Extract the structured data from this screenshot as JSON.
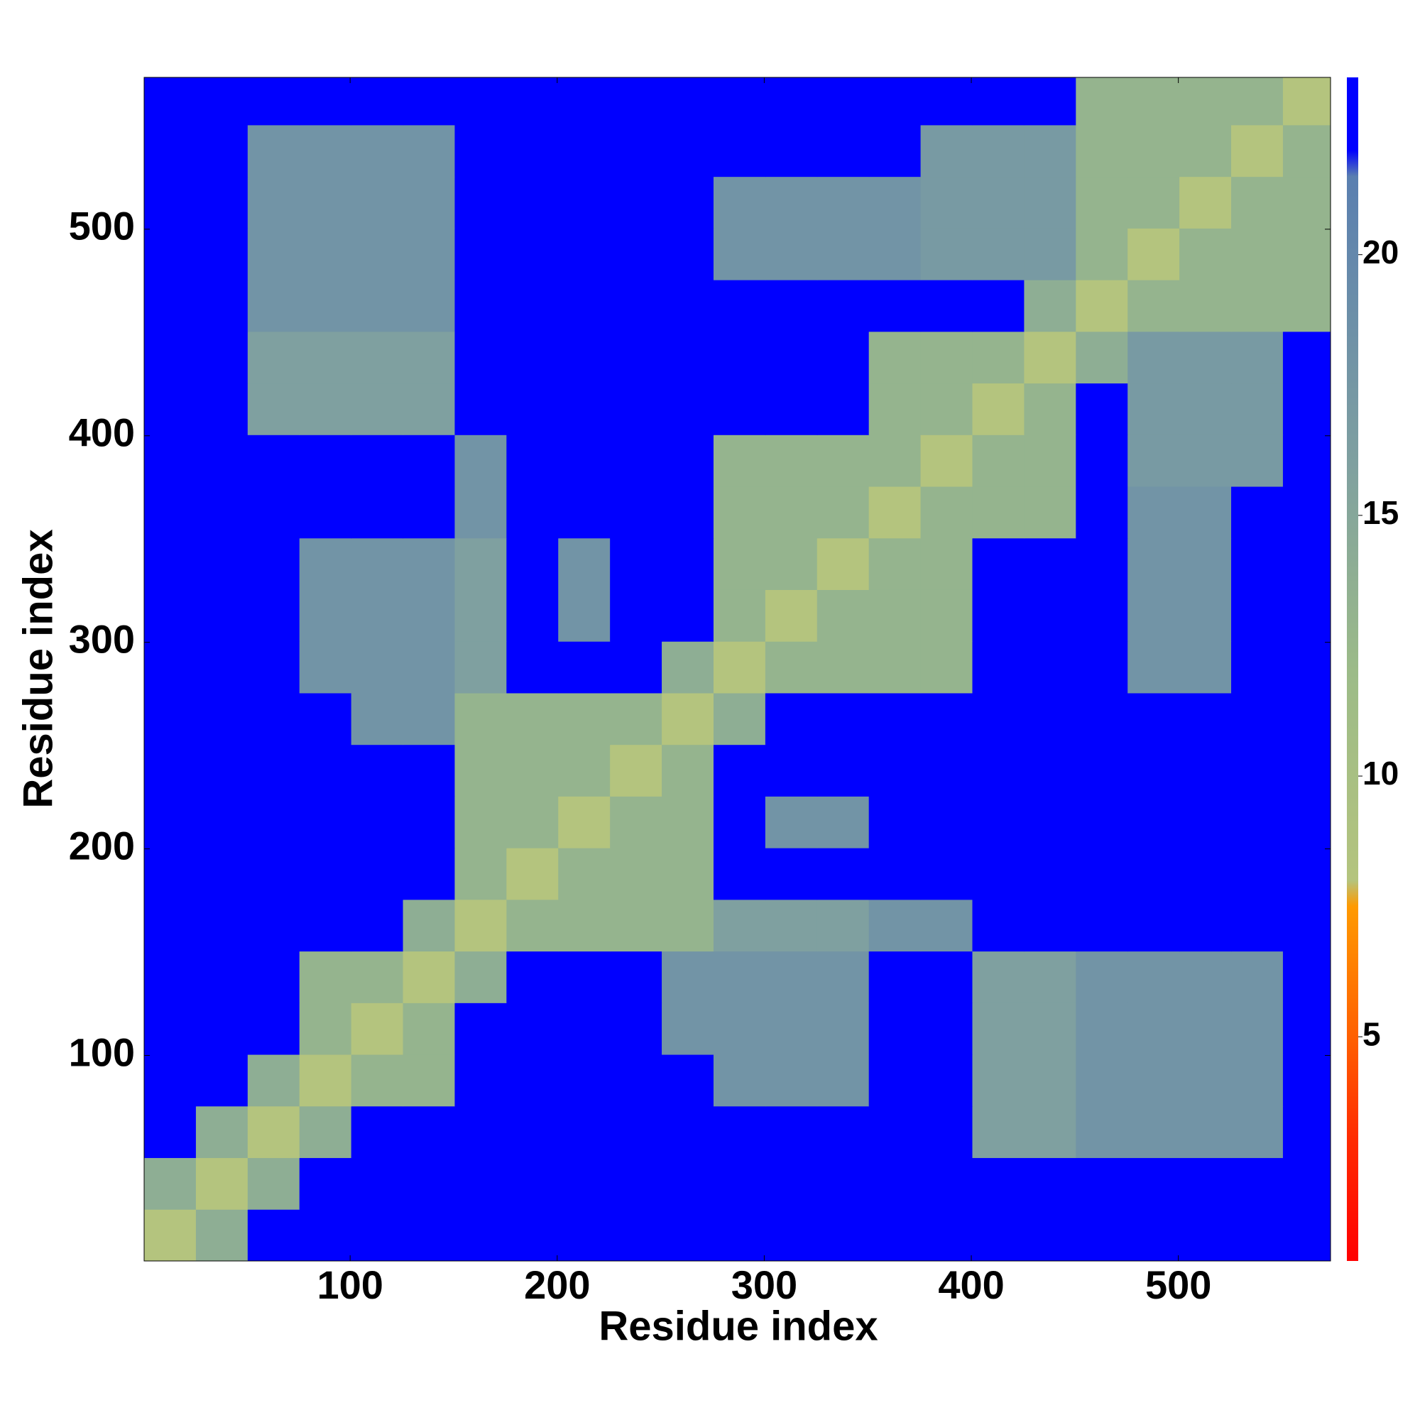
{
  "chart_data": {
    "type": "heatmap",
    "xlabel": "Residue index",
    "ylabel": "Residue index",
    "xlim": [
      0.5,
      573.5
    ],
    "ylim": [
      0.5,
      573.5
    ],
    "xticks": [
      100,
      200,
      300,
      400,
      500
    ],
    "yticks": [
      100,
      200,
      300,
      400,
      500
    ],
    "xbins": [
      0.5,
      25.5,
      50.5,
      75.5,
      100.5,
      125.5,
      150.5,
      175.5,
      200.5,
      225.5,
      250.5,
      275.5,
      300.5,
      325.5,
      350.5,
      375.5,
      400.5,
      425.5,
      450.5,
      475.5,
      500.5,
      525.5,
      550.5,
      575.5
    ],
    "ybins": [
      0.5,
      25.5,
      50.5,
      75.5,
      100.5,
      125.5,
      150.5,
      175.5,
      200.5,
      225.5,
      250.5,
      275.5,
      300.5,
      325.5,
      350.5,
      375.5,
      400.5,
      425.5,
      450.5,
      475.5,
      500.5,
      525.5,
      550.5,
      575.5
    ],
    "zlim": [
      0.7,
      23.4
    ],
    "zticks": [
      5,
      10,
      15,
      20
    ],
    "colorscale": [
      [
        0.7,
        "#ff0000"
      ],
      [
        3,
        "#ff2a00"
      ],
      [
        5,
        "#ff6000"
      ],
      [
        7.5,
        "#ff9a00"
      ],
      [
        8,
        "#b4c47e"
      ],
      [
        12,
        "#9cbb88"
      ],
      [
        16,
        "#7fa0a0"
      ],
      [
        21.5,
        "#5a7fb0"
      ],
      [
        22,
        "#0000ff"
      ],
      [
        23.4,
        "#0000ff"
      ]
    ],
    "z": [
      [
        8,
        14,
        23,
        23,
        23,
        23,
        23,
        23,
        23,
        23,
        23,
        23,
        23,
        23,
        23,
        23,
        23,
        23,
        23,
        23,
        23,
        23,
        23
      ],
      [
        14,
        8,
        14,
        23,
        23,
        23,
        23,
        23,
        23,
        23,
        23,
        23,
        23,
        23,
        23,
        23,
        23,
        23,
        23,
        23,
        23,
        23,
        23
      ],
      [
        23,
        14,
        8,
        14,
        23,
        23,
        23,
        23,
        23,
        23,
        23,
        23,
        23,
        23,
        23,
        23,
        16,
        16,
        18,
        18,
        18,
        18,
        23
      ],
      [
        23,
        23,
        14,
        8,
        13,
        13,
        23,
        23,
        23,
        23,
        23,
        18,
        18,
        18,
        23,
        23,
        16,
        16,
        18,
        18,
        18,
        18,
        23
      ],
      [
        23,
        23,
        23,
        13,
        8,
        13,
        23,
        23,
        23,
        23,
        18,
        18,
        18,
        18,
        23,
        23,
        16,
        16,
        18,
        18,
        18,
        18,
        23
      ],
      [
        23,
        23,
        23,
        13,
        13,
        8,
        14,
        23,
        23,
        23,
        18,
        18,
        18,
        18,
        23,
        23,
        16,
        16,
        18,
        18,
        18,
        18,
        23
      ],
      [
        23,
        23,
        23,
        23,
        23,
        14,
        8,
        13,
        13,
        13,
        13,
        16,
        16,
        16,
        18,
        18,
        23,
        23,
        23,
        23,
        23,
        23,
        23
      ],
      [
        23,
        23,
        23,
        23,
        23,
        23,
        13,
        8,
        13,
        13,
        13,
        23,
        23,
        23,
        23,
        23,
        23,
        23,
        23,
        23,
        23,
        23,
        23
      ],
      [
        23,
        23,
        23,
        23,
        23,
        23,
        13,
        13,
        8,
        13,
        13,
        23,
        18,
        18,
        23,
        23,
        23,
        23,
        23,
        23,
        23,
        23,
        23
      ],
      [
        23,
        23,
        23,
        23,
        23,
        23,
        13,
        13,
        13,
        8,
        13,
        23,
        23,
        23,
        23,
        23,
        23,
        23,
        23,
        23,
        23,
        23,
        23
      ],
      [
        23,
        23,
        23,
        23,
        18,
        18,
        13,
        13,
        13,
        13,
        8,
        14,
        23,
        23,
        23,
        23,
        23,
        23,
        23,
        23,
        23,
        23,
        23
      ],
      [
        23,
        23,
        23,
        18,
        18,
        18,
        16,
        23,
        23,
        23,
        14,
        8,
        13,
        13,
        13,
        13,
        23,
        23,
        23,
        18,
        18,
        23,
        23
      ],
      [
        23,
        23,
        23,
        18,
        18,
        18,
        16,
        23,
        18,
        23,
        23,
        13,
        8,
        13,
        13,
        13,
        23,
        23,
        23,
        18,
        18,
        23,
        23
      ],
      [
        23,
        23,
        23,
        18,
        18,
        18,
        16,
        23,
        18,
        23,
        23,
        13,
        13,
        8,
        13,
        13,
        23,
        23,
        23,
        18,
        18,
        23,
        23
      ],
      [
        23,
        23,
        23,
        23,
        23,
        23,
        18,
        23,
        23,
        23,
        23,
        13,
        13,
        13,
        8,
        13,
        13,
        13,
        23,
        18,
        18,
        23,
        23
      ],
      [
        23,
        23,
        23,
        23,
        23,
        23,
        18,
        23,
        23,
        23,
        23,
        13,
        13,
        13,
        13,
        8,
        13,
        13,
        23,
        17,
        17,
        17,
        23
      ],
      [
        23,
        23,
        16,
        16,
        16,
        16,
        23,
        23,
        23,
        23,
        23,
        23,
        23,
        23,
        13,
        13,
        8,
        13,
        23,
        17,
        17,
        17,
        23
      ],
      [
        23,
        23,
        16,
        16,
        16,
        16,
        23,
        23,
        23,
        23,
        23,
        23,
        23,
        23,
        13,
        13,
        13,
        8,
        14,
        17,
        17,
        17,
        23
      ],
      [
        23,
        23,
        18,
        18,
        18,
        18,
        23,
        23,
        23,
        23,
        23,
        23,
        23,
        23,
        23,
        23,
        23,
        14,
        8,
        13,
        13,
        13,
        13
      ],
      [
        23,
        23,
        18,
        18,
        18,
        18,
        23,
        23,
        23,
        23,
        23,
        18,
        18,
        18,
        18,
        17,
        17,
        17,
        13,
        8,
        13,
        13,
        13
      ],
      [
        23,
        23,
        18,
        18,
        18,
        18,
        23,
        23,
        23,
        23,
        23,
        18,
        18,
        18,
        18,
        17,
        17,
        17,
        13,
        13,
        8,
        13,
        13
      ],
      [
        23,
        23,
        18,
        18,
        18,
        18,
        23,
        23,
        23,
        23,
        23,
        23,
        23,
        23,
        23,
        17,
        17,
        17,
        13,
        13,
        13,
        8,
        13
      ],
      [
        23,
        23,
        23,
        23,
        23,
        23,
        23,
        23,
        23,
        23,
        23,
        23,
        23,
        23,
        23,
        23,
        23,
        23,
        13,
        13,
        13,
        13,
        8
      ]
    ]
  }
}
